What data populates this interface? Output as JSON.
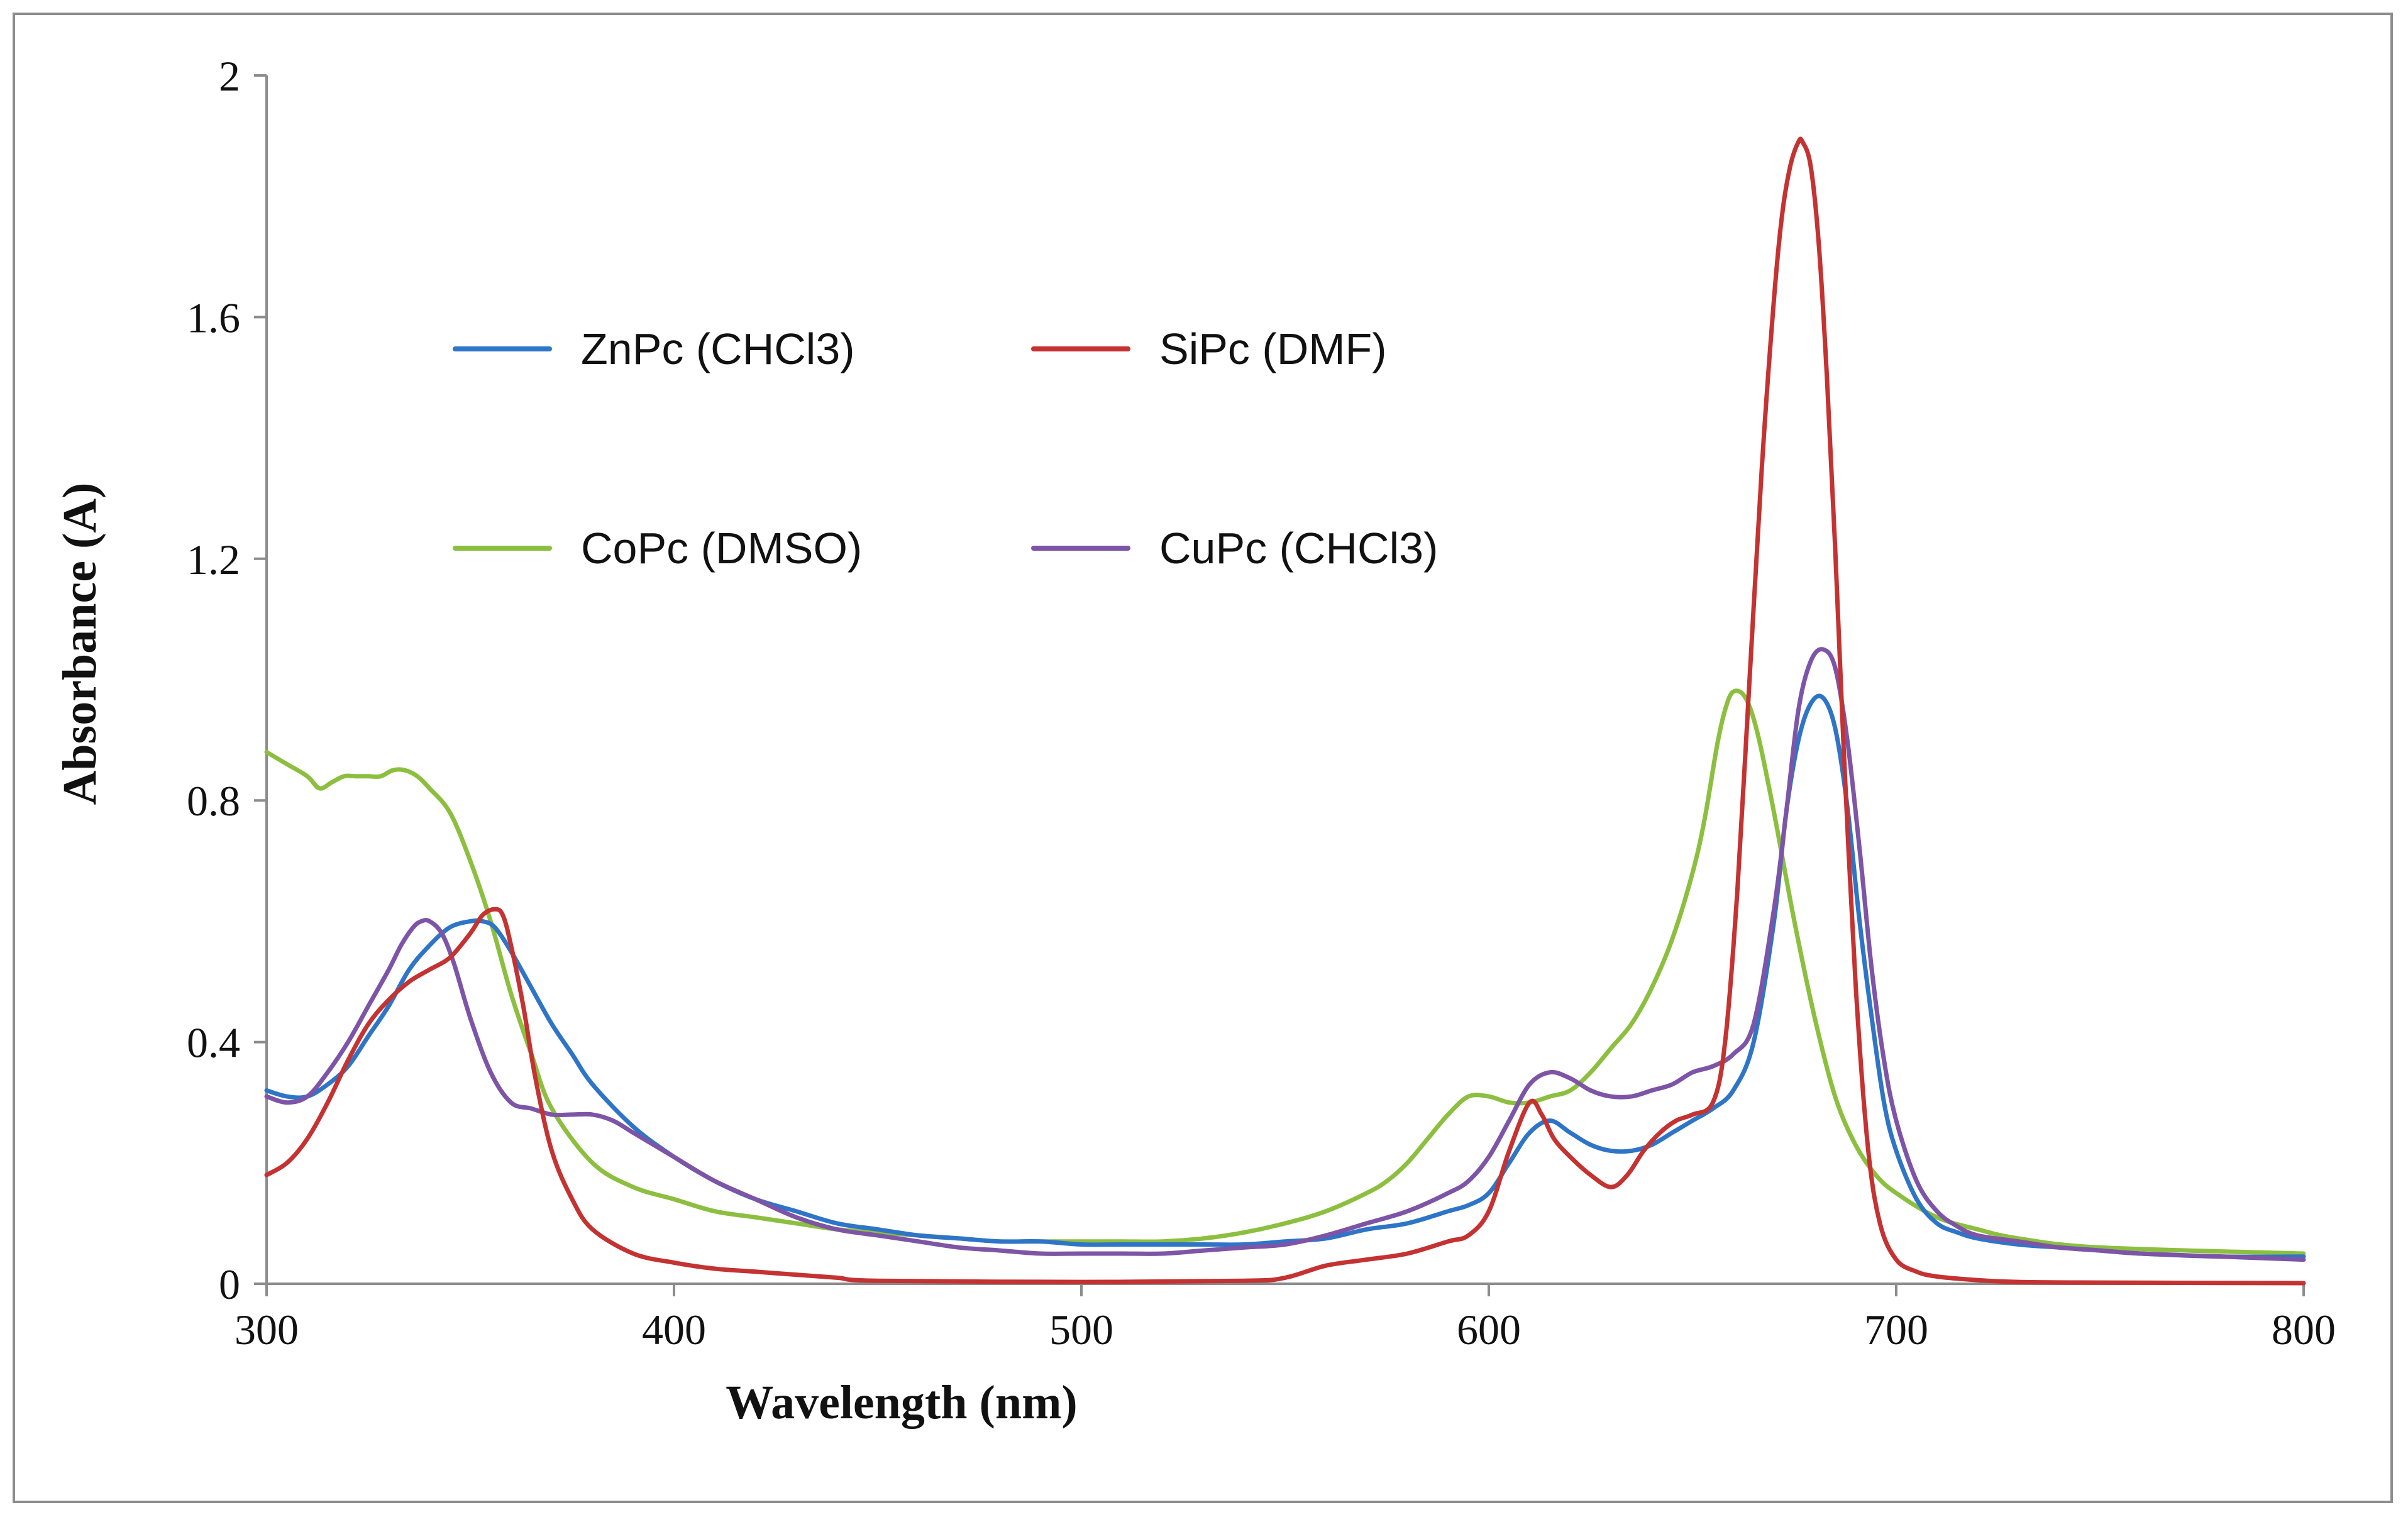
{
  "chart_data": {
    "type": "line",
    "title": "",
    "xlabel": "Wavelength (nm)",
    "ylabel": "Absorbance (A)",
    "xlim": [
      300,
      800
    ],
    "ylim": [
      0,
      2
    ],
    "xticks": [
      300,
      400,
      500,
      600,
      700,
      800
    ],
    "xtick_labels": [
      "300",
      "400",
      "500",
      "600",
      "700",
      "800"
    ],
    "yticks": [
      0,
      0.4,
      0.8,
      1.2,
      1.6,
      2
    ],
    "ytick_labels": [
      "0",
      "0.4",
      "0.8",
      "1.2",
      "1.6",
      "2"
    ],
    "grid": false,
    "legend_position": "upper-left",
    "series": [
      {
        "name": "ZnPc (CHCl3)",
        "color": "#2e75c8",
        "x": [
          300,
          305,
          310,
          315,
          320,
          325,
          330,
          335,
          340,
          345,
          350,
          353,
          356,
          360,
          365,
          370,
          375,
          380,
          390,
          400,
          410,
          420,
          430,
          440,
          450,
          460,
          470,
          480,
          490,
          500,
          510,
          520,
          530,
          540,
          550,
          560,
          570,
          580,
          590,
          595,
          600,
          605,
          610,
          615,
          620,
          625,
          630,
          635,
          640,
          645,
          650,
          655,
          660,
          665,
          670,
          673,
          676,
          679,
          682,
          685,
          688,
          691,
          694,
          697,
          700,
          705,
          710,
          715,
          720,
          730,
          740,
          750,
          760,
          780,
          800
        ],
        "y": [
          0.32,
          0.31,
          0.31,
          0.33,
          0.36,
          0.41,
          0.46,
          0.52,
          0.56,
          0.59,
          0.6,
          0.6,
          0.59,
          0.55,
          0.49,
          0.43,
          0.38,
          0.33,
          0.26,
          0.21,
          0.17,
          0.14,
          0.12,
          0.1,
          0.09,
          0.08,
          0.075,
          0.07,
          0.07,
          0.065,
          0.065,
          0.065,
          0.065,
          0.065,
          0.07,
          0.075,
          0.09,
          0.1,
          0.12,
          0.13,
          0.15,
          0.2,
          0.25,
          0.27,
          0.25,
          0.23,
          0.22,
          0.22,
          0.23,
          0.25,
          0.27,
          0.29,
          0.32,
          0.4,
          0.6,
          0.78,
          0.9,
          0.96,
          0.97,
          0.92,
          0.79,
          0.6,
          0.44,
          0.3,
          0.22,
          0.14,
          0.1,
          0.085,
          0.075,
          0.065,
          0.06,
          0.055,
          0.05,
          0.045,
          0.045
        ]
      },
      {
        "name": "SiPc (DMF)",
        "color": "#c43232",
        "x": [
          300,
          305,
          310,
          315,
          320,
          325,
          330,
          335,
          340,
          345,
          350,
          353,
          356,
          358,
          360,
          363,
          366,
          370,
          375,
          380,
          390,
          400,
          410,
          420,
          430,
          440,
          450,
          500,
          540,
          550,
          560,
          570,
          580,
          590,
          595,
          600,
          605,
          610,
          613,
          616,
          620,
          625,
          630,
          634,
          638,
          642,
          646,
          650,
          655,
          658,
          661,
          664,
          667,
          670,
          672,
          674,
          676,
          677,
          679,
          681,
          683,
          685,
          687,
          690,
          693,
          696,
          700,
          705,
          710,
          720,
          730,
          750,
          800
        ],
        "y": [
          0.18,
          0.2,
          0.24,
          0.3,
          0.37,
          0.43,
          0.47,
          0.5,
          0.52,
          0.54,
          0.58,
          0.61,
          0.62,
          0.61,
          0.56,
          0.46,
          0.34,
          0.22,
          0.14,
          0.09,
          0.05,
          0.035,
          0.025,
          0.02,
          0.015,
          0.01,
          0.005,
          0.003,
          0.005,
          0.01,
          0.03,
          0.04,
          0.05,
          0.07,
          0.08,
          0.12,
          0.22,
          0.3,
          0.28,
          0.24,
          0.21,
          0.18,
          0.16,
          0.18,
          0.22,
          0.25,
          0.27,
          0.28,
          0.3,
          0.4,
          0.65,
          1.0,
          1.35,
          1.63,
          1.77,
          1.85,
          1.89,
          1.89,
          1.85,
          1.72,
          1.5,
          1.22,
          0.9,
          0.5,
          0.23,
          0.1,
          0.04,
          0.02,
          0.012,
          0.006,
          0.003,
          0.002,
          0.001
        ]
      },
      {
        "name": "CoPc (DMSO)",
        "color": "#8cbf3f",
        "x": [
          300,
          305,
          310,
          313,
          316,
          319,
          322,
          325,
          328,
          331,
          334,
          337,
          340,
          345,
          350,
          355,
          360,
          365,
          370,
          380,
          390,
          400,
          410,
          420,
          430,
          440,
          450,
          460,
          470,
          480,
          490,
          500,
          510,
          520,
          530,
          540,
          550,
          560,
          570,
          575,
          580,
          585,
          590,
          595,
          600,
          605,
          610,
          615,
          620,
          625,
          630,
          635,
          640,
          645,
          650,
          653,
          656,
          658,
          660,
          663,
          666,
          670,
          675,
          680,
          685,
          690,
          695,
          700,
          710,
          720,
          730,
          750,
          800
        ],
        "y": [
          0.88,
          0.86,
          0.84,
          0.82,
          0.83,
          0.84,
          0.84,
          0.84,
          0.84,
          0.85,
          0.85,
          0.84,
          0.82,
          0.78,
          0.7,
          0.6,
          0.48,
          0.38,
          0.29,
          0.2,
          0.16,
          0.14,
          0.12,
          0.11,
          0.1,
          0.09,
          0.085,
          0.08,
          0.075,
          0.07,
          0.07,
          0.07,
          0.07,
          0.07,
          0.075,
          0.085,
          0.1,
          0.12,
          0.15,
          0.17,
          0.2,
          0.24,
          0.28,
          0.31,
          0.31,
          0.3,
          0.3,
          0.31,
          0.32,
          0.35,
          0.39,
          0.43,
          0.49,
          0.57,
          0.68,
          0.77,
          0.89,
          0.95,
          0.98,
          0.97,
          0.91,
          0.78,
          0.6,
          0.44,
          0.31,
          0.23,
          0.18,
          0.15,
          0.11,
          0.09,
          0.075,
          0.06,
          0.05
        ]
      },
      {
        "name": "CuPc (CHCl3)",
        "color": "#7d54a6",
        "x": [
          300,
          305,
          310,
          315,
          320,
          325,
          330,
          333,
          336,
          338,
          340,
          343,
          346,
          350,
          355,
          360,
          365,
          370,
          375,
          380,
          385,
          390,
          395,
          400,
          410,
          420,
          430,
          440,
          450,
          460,
          470,
          480,
          490,
          500,
          510,
          520,
          530,
          540,
          550,
          560,
          570,
          580,
          590,
          595,
          600,
          605,
          610,
          615,
          620,
          625,
          630,
          635,
          640,
          645,
          650,
          655,
          660,
          665,
          670,
          673,
          676,
          679,
          682,
          685,
          688,
          691,
          694,
          697,
          700,
          705,
          710,
          715,
          720,
          730,
          740,
          750,
          760,
          780,
          800
        ],
        "y": [
          0.31,
          0.3,
          0.31,
          0.35,
          0.4,
          0.46,
          0.52,
          0.56,
          0.59,
          0.6,
          0.6,
          0.58,
          0.53,
          0.44,
          0.35,
          0.3,
          0.29,
          0.28,
          0.28,
          0.28,
          0.27,
          0.25,
          0.23,
          0.21,
          0.17,
          0.14,
          0.11,
          0.09,
          0.08,
          0.07,
          0.06,
          0.055,
          0.05,
          0.05,
          0.05,
          0.05,
          0.055,
          0.06,
          0.065,
          0.08,
          0.1,
          0.12,
          0.15,
          0.17,
          0.21,
          0.27,
          0.33,
          0.35,
          0.34,
          0.32,
          0.31,
          0.31,
          0.32,
          0.33,
          0.35,
          0.36,
          0.38,
          0.43,
          0.62,
          0.78,
          0.95,
          1.03,
          1.05,
          1.02,
          0.9,
          0.72,
          0.52,
          0.37,
          0.27,
          0.17,
          0.12,
          0.095,
          0.08,
          0.07,
          0.06,
          0.055,
          0.05,
          0.045,
          0.04
        ]
      }
    ]
  }
}
